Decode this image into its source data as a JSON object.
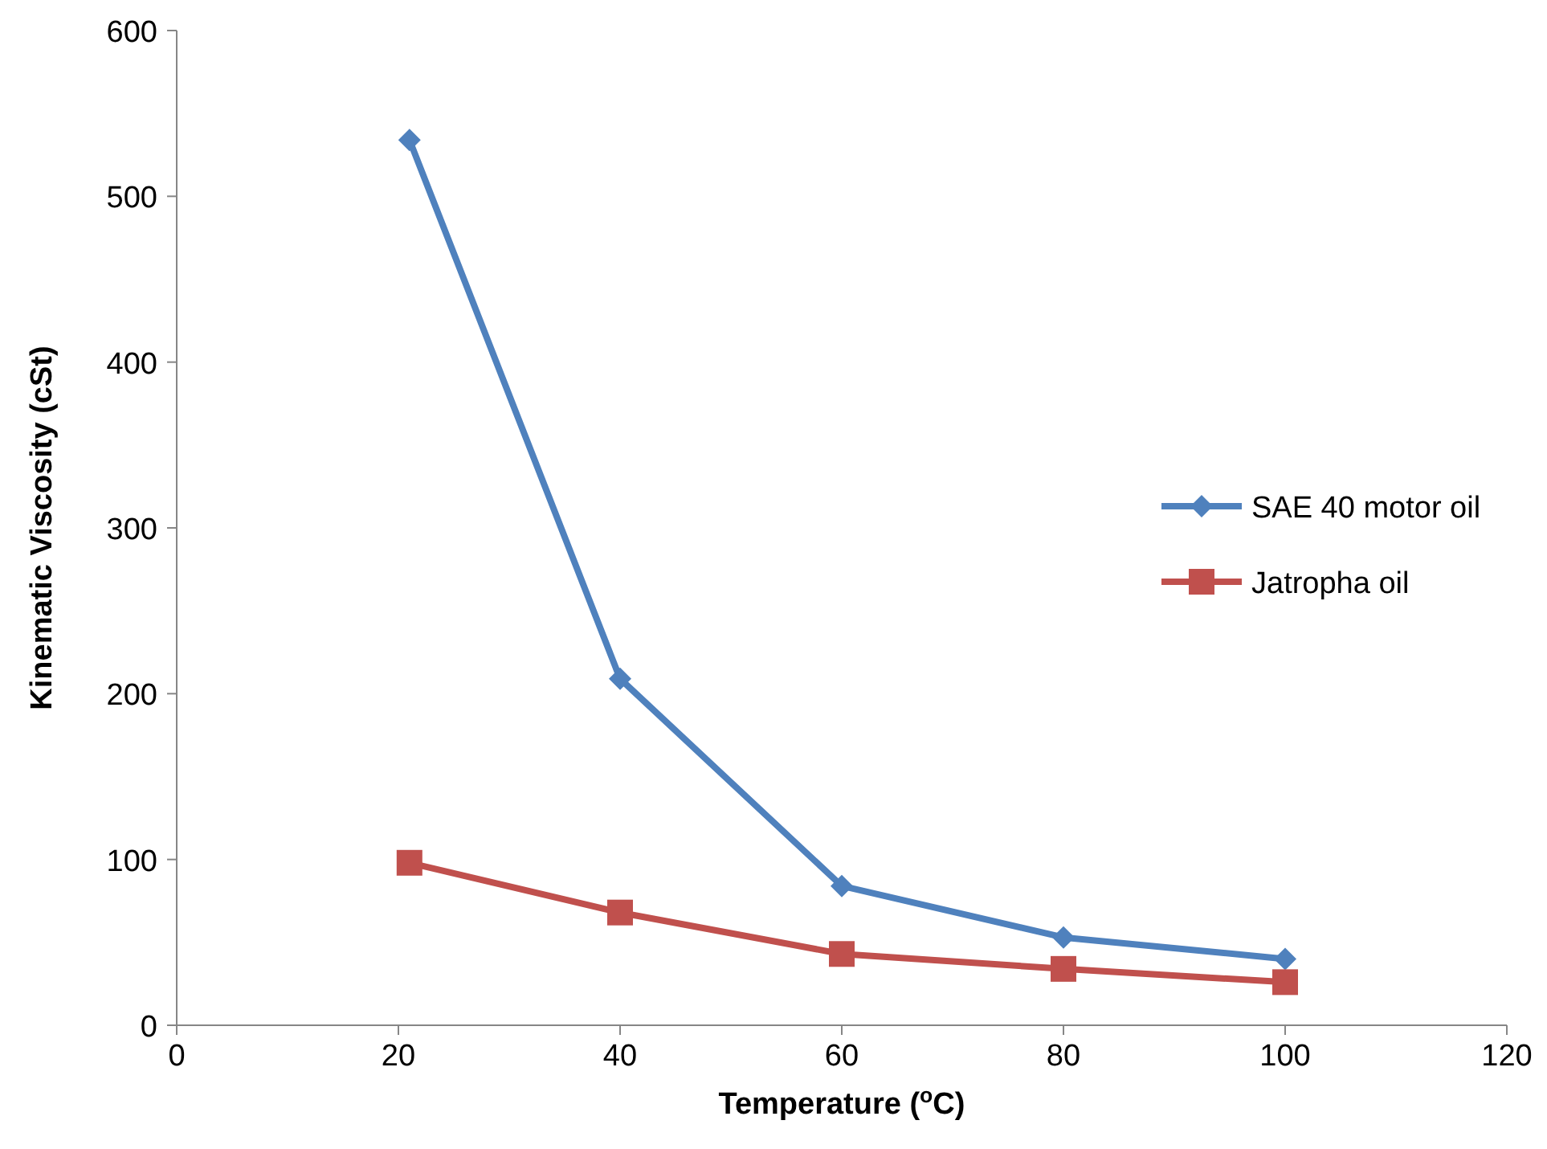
{
  "chart_data": {
    "type": "line",
    "xlabel": "Temperature ($^{o}$C)",
    "ylabel": "Kinematic Viscosity (cSt)",
    "xlim": [
      0,
      120
    ],
    "xticks": [
      0,
      20,
      40,
      60,
      80,
      100,
      120
    ],
    "ylim": [
      0,
      600
    ],
    "yticks": [
      0,
      100,
      200,
      300,
      400,
      500,
      600
    ],
    "grid": false,
    "legend": "right",
    "line_style": "solid",
    "series": [
      {
        "name": "SAE 40 motor oil",
        "color": "#4f81bd",
        "marker": "diamond",
        "x": [
          21,
          40,
          60,
          80,
          100
        ],
        "values": [
          534,
          209,
          84,
          53,
          40
        ]
      },
      {
        "name": "Jatropha oil",
        "color": "#c0504d",
        "marker": "square",
        "x": [
          21,
          40,
          60,
          80,
          100
        ],
        "values": [
          98,
          68,
          43,
          34,
          26
        ]
      }
    ]
  }
}
